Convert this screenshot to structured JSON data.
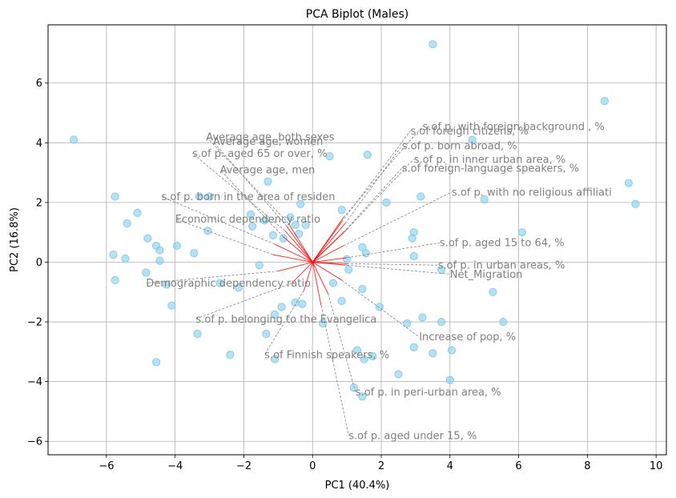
{
  "chart_data": {
    "type": "scatter",
    "title": "PCA Biplot (Males)",
    "xlabel": "PC1 (40.4%)",
    "ylabel": "PC2 (16.8%)",
    "xlim": [
      -7.7,
      10.3
    ],
    "ylim": [
      -6.45,
      7.95
    ],
    "x_ticks": [
      -6,
      -4,
      -2,
      0,
      2,
      4,
      6,
      8,
      10
    ],
    "y_ticks": [
      -6,
      -4,
      -2,
      0,
      2,
      4,
      6
    ],
    "grid": true,
    "colors": {
      "points": "#87ceeb",
      "arrows": "#ff0000",
      "labels": "#808080",
      "grid": "#b0b0b0"
    },
    "points": [
      [
        -6.95,
        4.1
      ],
      [
        -5.75,
        2.2
      ],
      [
        -5.4,
        1.3
      ],
      [
        -5.1,
        1.65
      ],
      [
        -5.8,
        0.25
      ],
      [
        -5.45,
        0.12
      ],
      [
        -5.75,
        -0.6
      ],
      [
        -4.8,
        0.8
      ],
      [
        -4.55,
        0.55
      ],
      [
        -4.45,
        0.4
      ],
      [
        -4.45,
        0.05
      ],
      [
        -4.85,
        -0.35
      ],
      [
        -4.25,
        -0.75
      ],
      [
        -4.1,
        -1.45
      ],
      [
        -4.55,
        -3.35
      ],
      [
        -3.95,
        0.55
      ],
      [
        -3.45,
        0.3
      ],
      [
        -3.3,
        2.2
      ],
      [
        -3.0,
        2.2
      ],
      [
        -3.05,
        1.05
      ],
      [
        -3.35,
        -2.4
      ],
      [
        -2.7,
        -0.7
      ],
      [
        -2.4,
        -3.1
      ],
      [
        -2.15,
        -0.85
      ],
      [
        -1.8,
        1.6
      ],
      [
        -1.75,
        1.2
      ],
      [
        -1.55,
        -0.1
      ],
      [
        -1.4,
        1.4
      ],
      [
        -1.3,
        2.7
      ],
      [
        -1.15,
        0.9
      ],
      [
        -1.1,
        -3.25
      ],
      [
        -1.35,
        -2.4
      ],
      [
        -1.1,
        -1.75
      ],
      [
        -0.9,
        -1.5
      ],
      [
        -0.85,
        0.8
      ],
      [
        -0.65,
        1.5
      ],
      [
        -0.5,
        1.25
      ],
      [
        -0.4,
        0.95
      ],
      [
        -0.35,
        1.95
      ],
      [
        -0.3,
        -1.4
      ],
      [
        -0.5,
        -1.35
      ],
      [
        -0.2,
        1.25
      ],
      [
        0.5,
        3.55
      ],
      [
        0.85,
        1.75
      ],
      [
        1.0,
        0.1
      ],
      [
        1.05,
        -0.25
      ],
      [
        0.6,
        -0.7
      ],
      [
        0.85,
        -1.3
      ],
      [
        0.3,
        -2.05
      ],
      [
        1.6,
        3.6
      ],
      [
        1.45,
        0.5
      ],
      [
        1.55,
        0.3
      ],
      [
        1.45,
        -0.9
      ],
      [
        1.3,
        -2.95
      ],
      [
        1.95,
        -1.5
      ],
      [
        1.5,
        -3.25
      ],
      [
        1.75,
        -3.15
      ],
      [
        1.2,
        -4.2
      ],
      [
        1.45,
        -4.5
      ],
      [
        2.15,
        2.0
      ],
      [
        2.5,
        -3.75
      ],
      [
        2.95,
        1.0
      ],
      [
        2.9,
        0.8
      ],
      [
        2.95,
        0.2
      ],
      [
        2.75,
        -2.05
      ],
      [
        3.15,
        2.2
      ],
      [
        3.2,
        -1.85
      ],
      [
        2.95,
        -2.85
      ],
      [
        3.5,
        -3.05
      ],
      [
        3.5,
        7.3
      ],
      [
        3.75,
        -0.25
      ],
      [
        3.75,
        -2.0
      ],
      [
        4.05,
        -2.95
      ],
      [
        4.0,
        -3.95
      ],
      [
        4.65,
        4.1
      ],
      [
        5.0,
        2.1
      ],
      [
        5.25,
        -1.0
      ],
      [
        5.55,
        -2.0
      ],
      [
        6.1,
        1.0
      ],
      [
        8.5,
        5.4
      ],
      [
        9.2,
        2.65
      ],
      [
        9.4,
        1.95
      ]
    ],
    "loadings": [
      {
        "label": "s.of p. with foreign background , %",
        "end": [
          0.9,
          1.5
        ],
        "text": [
          3.2,
          4.55
        ]
      },
      {
        "label": "s.of foreign citizens, %",
        "end": [
          0.85,
          1.35
        ],
        "text": [
          2.85,
          4.4
        ]
      },
      {
        "label": "s.of p. born abroad, %",
        "end": [
          0.95,
          1.3
        ],
        "text": [
          2.6,
          3.9
        ]
      },
      {
        "label": "s.of p. in inner urban area, %",
        "end": [
          1.0,
          1.1
        ],
        "text": [
          2.95,
          3.45
        ]
      },
      {
        "label": "s.of foreign-language speakers, %",
        "end": [
          0.9,
          1.0
        ],
        "text": [
          2.6,
          3.15
        ]
      },
      {
        "label": "s.of p. with no religious affiliati",
        "end": [
          0.9,
          0.55
        ],
        "text": [
          4.05,
          2.35
        ]
      },
      {
        "label": "s.of p. aged 15 to 64, %",
        "end": [
          1.0,
          0.15
        ],
        "text": [
          3.7,
          0.65
        ]
      },
      {
        "label": "s.of p. in urban areas, %",
        "end": [
          1.0,
          -0.05
        ],
        "text": [
          3.65,
          -0.1
        ]
      },
      {
        "label": "Net_Migration",
        "end": [
          1.0,
          -0.1
        ],
        "text": [
          4.0,
          -0.4
        ]
      },
      {
        "label": "Increase of pop, %",
        "end": [
          0.85,
          -0.6
        ],
        "text": [
          3.1,
          -2.5
        ]
      },
      {
        "label": "s.of p. in peri-urban area, %",
        "end": [
          0.45,
          -1.05
        ],
        "text": [
          1.25,
          -4.35
        ]
      },
      {
        "label": "s.of p. aged under 15, %",
        "end": [
          0.25,
          -1.45
        ],
        "text": [
          1.05,
          -5.8
        ]
      },
      {
        "label": "s.of Finnish speakers, %",
        "end": [
          -0.25,
          -0.95
        ],
        "text": [
          -1.4,
          -3.1
        ]
      },
      {
        "label": "s.of p. belonging to the Evangelica",
        "end": [
          -0.6,
          -0.7
        ],
        "text": [
          -3.4,
          -1.9
        ]
      },
      {
        "label": "Demographic dependency ratio",
        "end": [
          -1.0,
          -0.3
        ],
        "text": [
          -4.85,
          -0.7
        ]
      },
      {
        "label": "Economic dependency ratio",
        "end": [
          -1.15,
          0.25
        ],
        "text": [
          -4.0,
          1.45
        ]
      },
      {
        "label": "s.of p. born in the area of residen",
        "end": [
          -1.1,
          0.6
        ],
        "text": [
          -4.4,
          2.2
        ]
      },
      {
        "label": "Average age, men",
        "end": [
          -0.85,
          0.85
        ],
        "text": [
          -2.7,
          3.1
        ]
      },
      {
        "label": "s.of p. aged 65 or over, %",
        "end": [
          -0.8,
          1.05
        ],
        "text": [
          -3.5,
          3.65
        ]
      },
      {
        "label": "Average age, women",
        "end": [
          -0.75,
          1.2
        ],
        "text": [
          -2.9,
          4.05
        ]
      },
      {
        "label": "Average age, both sexes",
        "end": [
          -0.7,
          1.3
        ],
        "text": [
          -3.1,
          4.2
        ]
      }
    ]
  }
}
